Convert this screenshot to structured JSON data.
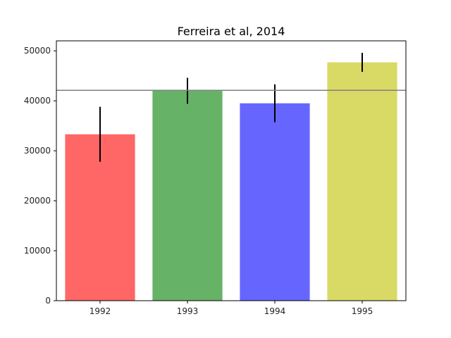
{
  "chart_data": {
    "type": "bar",
    "title": "Ferreira et al, 2014",
    "xlabel": "",
    "ylabel": "",
    "categories": [
      "1992",
      "1993",
      "1994",
      "1995"
    ],
    "values": [
      33300,
      42000,
      39500,
      47700
    ],
    "errors": [
      5500,
      2600,
      3800,
      1900
    ],
    "bar_colors": [
      "#ff6666",
      "#66b266",
      "#6666ff",
      "#d9d966"
    ],
    "reference_line": 42100,
    "reference_line_color": "#808080",
    "ylim": [
      0,
      52000
    ],
    "yticks": [
      0,
      10000,
      20000,
      30000,
      40000,
      50000
    ],
    "grid": false,
    "legend": "none"
  }
}
